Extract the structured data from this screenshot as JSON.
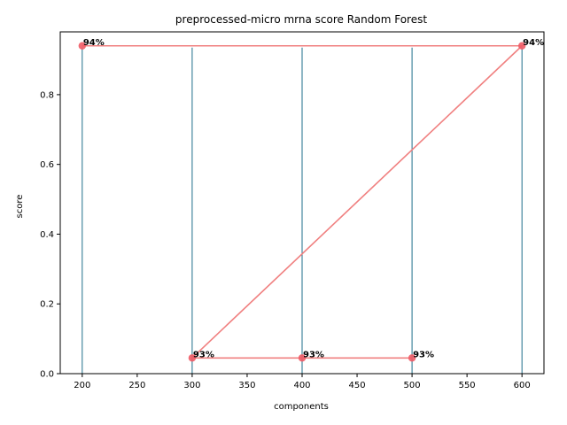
{
  "chart_data": {
    "type": "line",
    "title": "preprocessed-micro mrna  score Random Forest",
    "xlabel": "components",
    "ylabel": "score",
    "xlim": [
      180,
      620
    ],
    "ylim": [
      0,
      0.98
    ],
    "xticks": [
      200,
      250,
      300,
      350,
      400,
      450,
      500,
      550,
      600
    ],
    "yticks": [
      0.0,
      0.2,
      0.4,
      0.6,
      0.8
    ],
    "xtick_labels": [
      "200",
      "250",
      "300",
      "350",
      "400",
      "450",
      "500",
      "550",
      "600"
    ],
    "ytick_labels": [
      "0.0",
      "0.2",
      "0.4",
      "0.6",
      "0.8"
    ],
    "grid": false,
    "series": [
      {
        "color": "#f08080",
        "x": [
          200,
          600,
          300,
          400,
          500
        ],
        "y": [
          0.94,
          0.94,
          0.045,
          0.045,
          0.045
        ],
        "labels": [
          "94%",
          "94%",
          "93%",
          "93%",
          "93%"
        ]
      }
    ],
    "vlines": {
      "color": "#1f6f8b",
      "x": [
        200,
        300,
        400,
        500,
        600
      ],
      "ymin": 0,
      "ymax": 0.935
    }
  }
}
